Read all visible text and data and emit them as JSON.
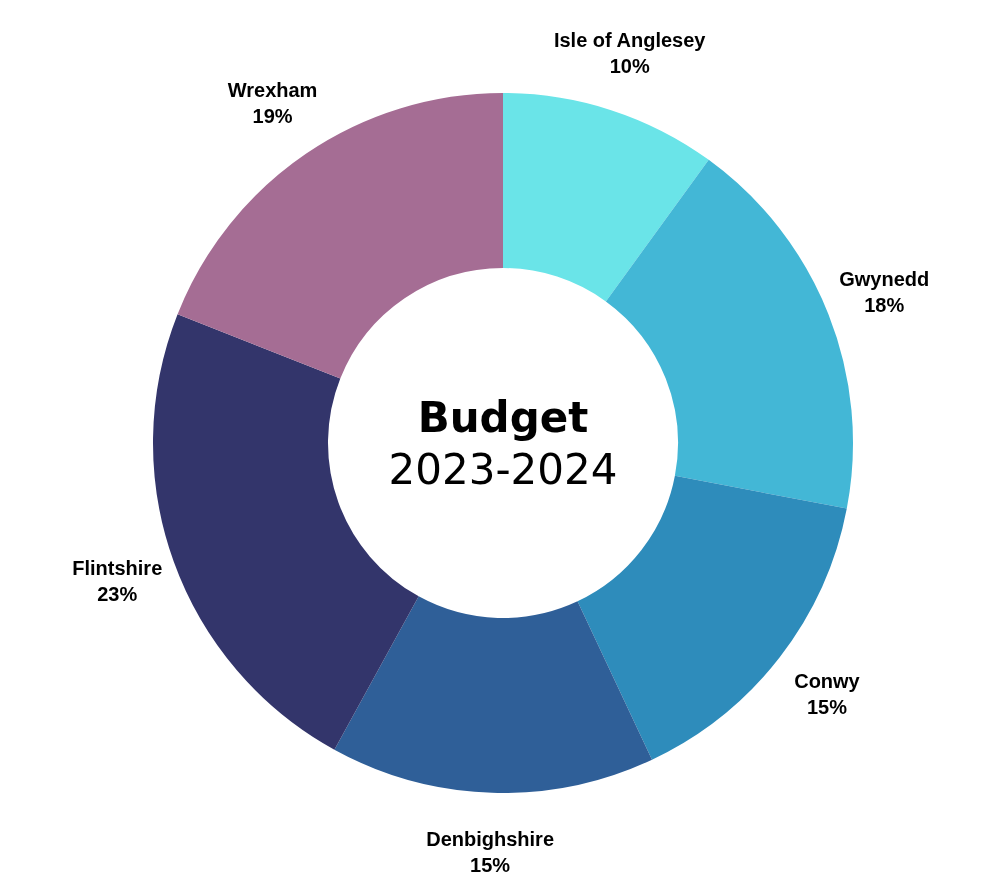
{
  "chart_data": {
    "type": "donut",
    "title": "Budget",
    "subtitle": "2023-2024",
    "categories": [
      "Isle of Anglesey",
      "Gwynedd",
      "Conwy",
      "Denbighshire",
      "Flintshire",
      "Wrexham"
    ],
    "values": [
      10,
      18,
      15,
      15,
      23,
      19
    ],
    "value_labels": [
      "10%",
      "18%",
      "15%",
      "15%",
      "23%",
      "19%"
    ],
    "colors": [
      "#6ae4e8",
      "#43b7d6",
      "#2e8cbb",
      "#2f5f98",
      "#33356b",
      "#a56d94"
    ],
    "legend": false
  }
}
